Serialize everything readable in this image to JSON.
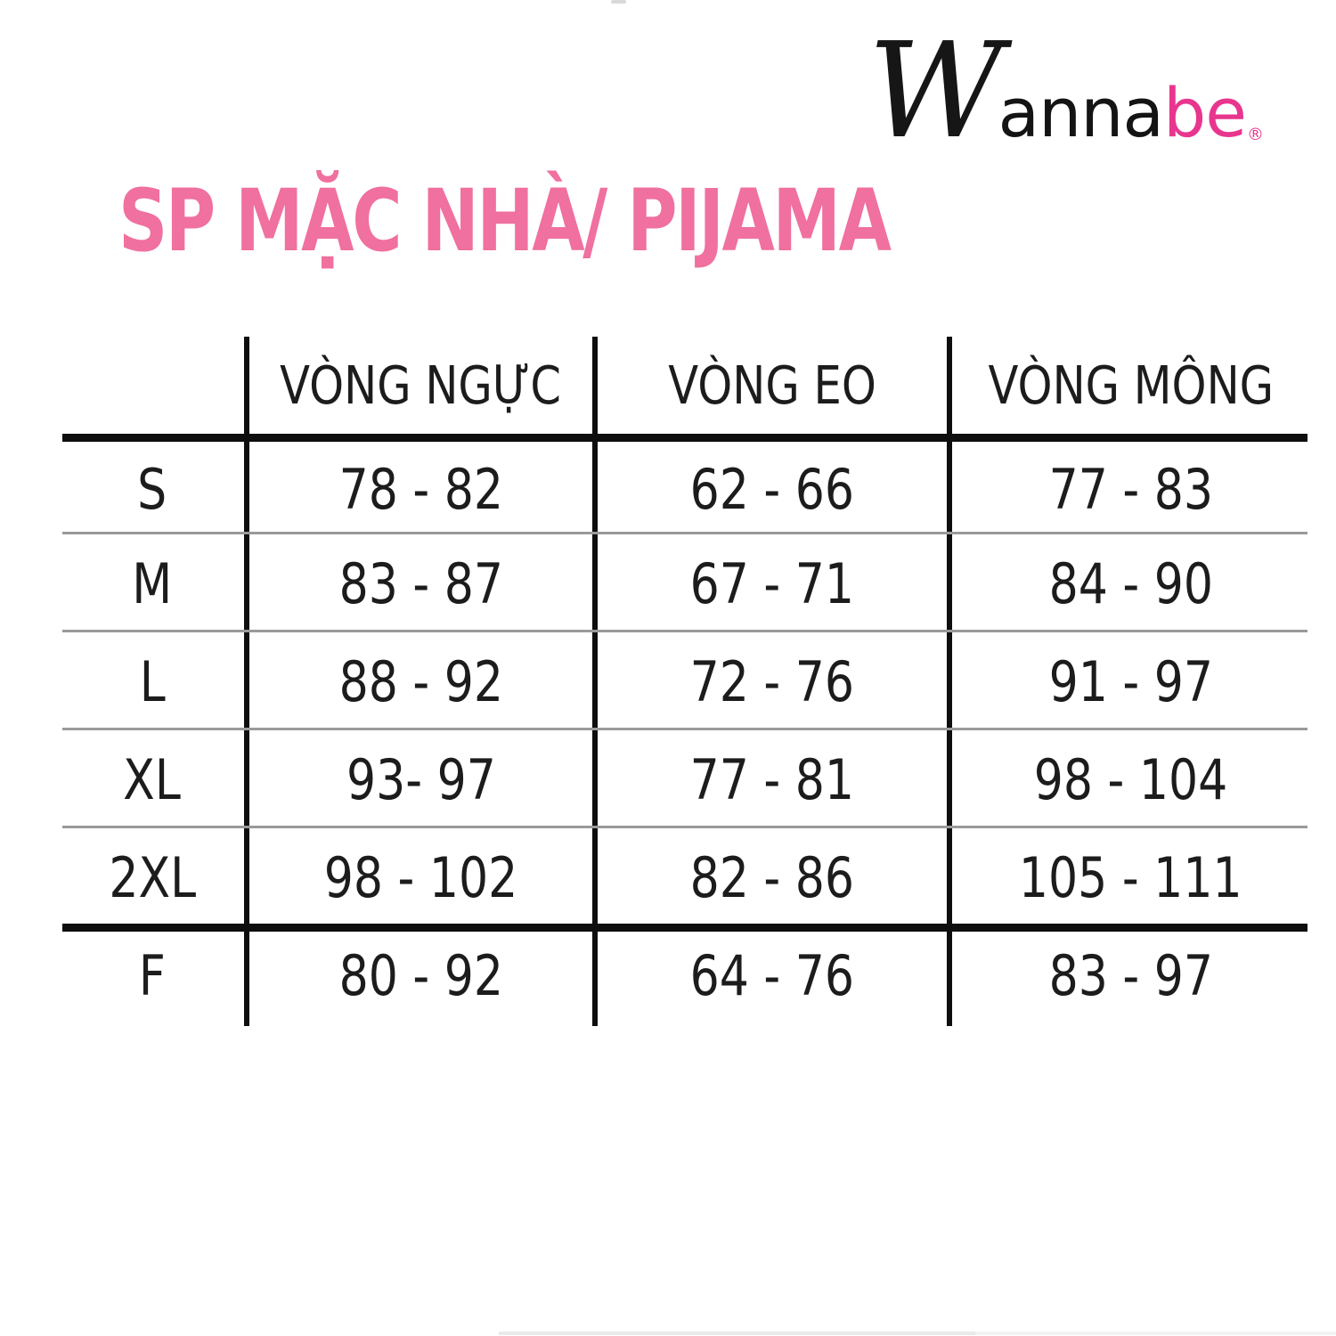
{
  "logo": {
    "w": "W",
    "anna": "anna",
    "be": "be",
    "registered": "®"
  },
  "title": {
    "text": "SP MẶC NHÀ/ PIJAMA"
  },
  "size_chart": {
    "headers": {
      "bust": "VÒNG NGỰC",
      "waist": "VÒNG EO",
      "hip": "VÒNG MÔNG"
    },
    "rows": [
      {
        "size": "S",
        "bust": "78 - 82",
        "waist": "62 - 66",
        "hip": "77 - 83"
      },
      {
        "size": "M",
        "bust": "83 - 87",
        "waist": "67 - 71",
        "hip": "84 - 90"
      },
      {
        "size": "L",
        "bust": "88 - 92",
        "waist": "72 - 76",
        "hip": "91 - 97"
      },
      {
        "size": "XL",
        "bust": "93- 97",
        "waist": "77 - 81",
        "hip": "98 - 104"
      },
      {
        "size": "2XL",
        "bust": "98 - 102",
        "waist": "82 - 86",
        "hip": "105 - 111"
      },
      {
        "size": "F",
        "bust": "80 - 92",
        "waist": "64 - 76",
        "hip": "83 - 97"
      }
    ]
  },
  "colors": {
    "title_pink": "#f0709f",
    "logo_pink": "#e8368f",
    "text": "#1c1c1c",
    "table_line_black": "#0e0e0e",
    "table_line_gray": "#9a9a9a"
  }
}
